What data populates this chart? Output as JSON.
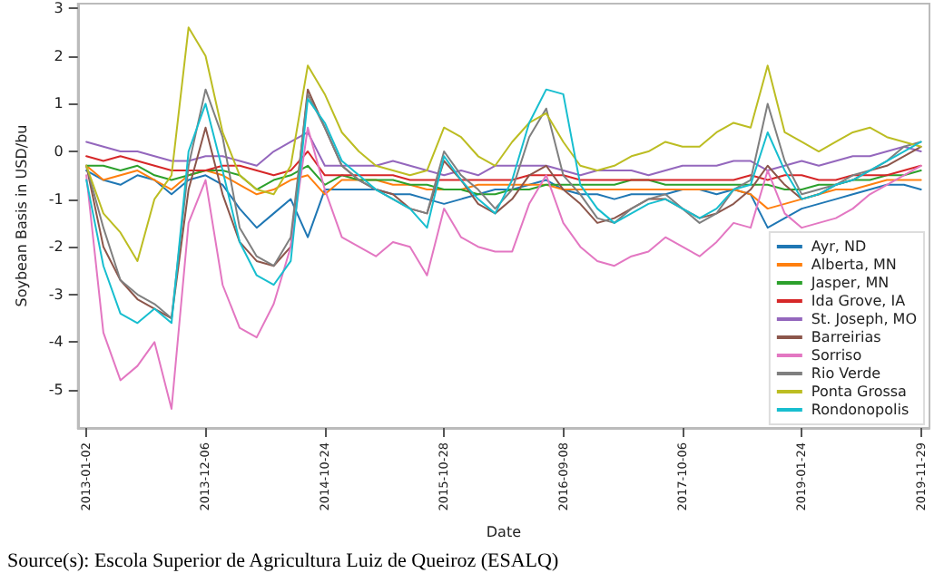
{
  "chart_data": {
    "type": "line",
    "xlabel": "Date",
    "ylabel": "Soybean Basis in USD/bu",
    "annotations": [
      "Source(s): Escola Superior de Agricultura Luiz de Queiroz (ESALQ)"
    ],
    "categories": [
      "2013-01-02",
      null,
      null,
      null,
      null,
      null,
      null,
      "2013-12-06",
      null,
      null,
      null,
      null,
      null,
      null,
      "2014-10-24",
      null,
      null,
      null,
      null,
      null,
      null,
      "2015-10-28",
      null,
      null,
      null,
      null,
      null,
      null,
      "2016-09-08",
      null,
      null,
      null,
      null,
      null,
      null,
      "2017-10-06",
      null,
      null,
      null,
      null,
      null,
      null,
      "2019-01-24",
      null,
      null,
      null,
      null,
      null,
      null,
      "2019-11-29"
    ],
    "ylim": [
      -5.8,
      3.1
    ],
    "yticks": [
      -5,
      -4,
      -3,
      -2,
      -1,
      0,
      1,
      2,
      3
    ],
    "legend": "bottom right",
    "grid": false,
    "line_style": "solid",
    "marker": "none",
    "series": [
      {
        "name": "Ayr, ND",
        "color": "#1f77b4",
        "values": [
          -0.4,
          -0.6,
          -0.7,
          -0.5,
          -0.6,
          -0.9,
          -0.6,
          -0.5,
          -0.7,
          -1.2,
          -1.6,
          -1.3,
          -1.0,
          -1.8,
          -0.8,
          -0.8,
          -0.8,
          -0.8,
          -0.9,
          -0.9,
          -1.0,
          -1.1,
          -1.0,
          -0.9,
          -0.8,
          -0.8,
          -0.7,
          -0.6,
          -0.8,
          -0.9,
          -0.9,
          -1.0,
          -0.9,
          -0.9,
          -0.9,
          -0.8,
          -0.8,
          -0.9,
          -0.8,
          -0.9,
          -1.6,
          -1.4,
          -1.2,
          -1.1,
          -1.0,
          -0.9,
          -0.8,
          -0.7,
          -0.7,
          -0.8
        ]
      },
      {
        "name": "Alberta, MN",
        "color": "#ff7f0e",
        "values": [
          -0.3,
          -0.6,
          -0.5,
          -0.4,
          -0.6,
          -0.8,
          -0.5,
          -0.4,
          -0.5,
          -0.7,
          -0.9,
          -0.8,
          -0.6,
          -0.5,
          -0.9,
          -0.6,
          -0.6,
          -0.6,
          -0.7,
          -0.7,
          -0.8,
          -0.8,
          -0.8,
          -0.7,
          -0.7,
          -0.7,
          -0.7,
          -0.7,
          -0.8,
          -0.8,
          -0.8,
          -0.8,
          -0.8,
          -0.8,
          -0.8,
          -0.8,
          -0.8,
          -0.8,
          -0.8,
          -0.9,
          -1.2,
          -1.1,
          -1.0,
          -0.9,
          -0.8,
          -0.8,
          -0.7,
          -0.6,
          -0.6,
          -0.6
        ]
      },
      {
        "name": "Jasper, MN",
        "color": "#2ca02c",
        "values": [
          -0.3,
          -0.3,
          -0.4,
          -0.3,
          -0.5,
          -0.6,
          -0.5,
          -0.4,
          -0.4,
          -0.5,
          -0.8,
          -0.6,
          -0.5,
          -0.3,
          -0.7,
          -0.5,
          -0.6,
          -0.6,
          -0.6,
          -0.7,
          -0.7,
          -0.8,
          -0.8,
          -0.9,
          -0.9,
          -0.8,
          -0.8,
          -0.7,
          -0.7,
          -0.7,
          -0.7,
          -0.7,
          -0.6,
          -0.6,
          -0.7,
          -0.7,
          -0.7,
          -0.7,
          -0.7,
          -0.7,
          -0.7,
          -0.8,
          -0.8,
          -0.7,
          -0.7,
          -0.6,
          -0.6,
          -0.5,
          -0.5,
          -0.4
        ]
      },
      {
        "name": "Ida Grove, IA",
        "color": "#d62728",
        "values": [
          -0.1,
          -0.2,
          -0.1,
          -0.2,
          -0.3,
          -0.4,
          -0.4,
          -0.4,
          -0.3,
          -0.3,
          -0.4,
          -0.5,
          -0.4,
          0.0,
          -0.5,
          -0.5,
          -0.5,
          -0.5,
          -0.5,
          -0.6,
          -0.6,
          -0.6,
          -0.6,
          -0.6,
          -0.6,
          -0.6,
          -0.5,
          -0.5,
          -0.5,
          -0.6,
          -0.6,
          -0.6,
          -0.6,
          -0.6,
          -0.6,
          -0.6,
          -0.6,
          -0.6,
          -0.6,
          -0.5,
          -0.6,
          -0.5,
          -0.5,
          -0.6,
          -0.6,
          -0.5,
          -0.5,
          -0.5,
          -0.4,
          -0.3
        ]
      },
      {
        "name": "St. Joseph, MO",
        "color": "#9467bd",
        "values": [
          0.2,
          0.1,
          0.0,
          0.0,
          -0.1,
          -0.2,
          -0.2,
          -0.1,
          -0.1,
          -0.2,
          -0.3,
          0.0,
          0.2,
          0.4,
          -0.3,
          -0.3,
          -0.3,
          -0.3,
          -0.2,
          -0.3,
          -0.4,
          -0.5,
          -0.4,
          -0.5,
          -0.3,
          -0.3,
          -0.3,
          -0.3,
          -0.4,
          -0.5,
          -0.4,
          -0.4,
          -0.4,
          -0.5,
          -0.4,
          -0.3,
          -0.3,
          -0.3,
          -0.2,
          -0.2,
          -0.4,
          -0.3,
          -0.2,
          -0.3,
          -0.2,
          -0.1,
          -0.1,
          0.0,
          0.1,
          0.0
        ]
      },
      {
        "name": "Barreirias",
        "color": "#8c564b",
        "values": [
          -0.3,
          -2.0,
          -2.7,
          -3.1,
          -3.3,
          -3.5,
          -0.8,
          0.5,
          -0.9,
          -1.9,
          -2.3,
          -2.4,
          -2.0,
          1.3,
          0.5,
          -0.3,
          -0.6,
          -0.8,
          -0.9,
          -1.2,
          -1.3,
          -0.2,
          -0.6,
          -1.1,
          -1.3,
          -1.0,
          -0.5,
          -0.3,
          -0.8,
          -1.1,
          -1.5,
          -1.4,
          -1.2,
          -1.0,
          -1.0,
          -1.2,
          -1.4,
          -1.3,
          -1.1,
          -0.8,
          -0.3,
          -0.7,
          -1.0,
          -0.9,
          -0.7,
          -0.6,
          -0.4,
          -0.3,
          -0.1,
          0.1
        ]
      },
      {
        "name": "Sorriso",
        "color": "#e377c2",
        "values": [
          -0.5,
          -3.8,
          -4.8,
          -4.5,
          -4.0,
          -5.4,
          -1.5,
          -0.6,
          -2.8,
          -3.7,
          -3.9,
          -3.2,
          -2.0,
          0.5,
          -0.8,
          -1.8,
          -2.0,
          -2.2,
          -1.9,
          -2.0,
          -2.6,
          -1.2,
          -1.8,
          -2.0,
          -2.1,
          -2.1,
          -1.1,
          -0.5,
          -1.5,
          -2.0,
          -2.3,
          -2.4,
          -2.2,
          -2.1,
          -1.8,
          -2.0,
          -2.2,
          -1.9,
          -1.5,
          -1.6,
          -0.4,
          -1.3,
          -1.6,
          -1.5,
          -1.4,
          -1.2,
          -0.9,
          -0.7,
          -0.5,
          -0.3
        ]
      },
      {
        "name": "Rio Verde",
        "color": "#7f7f7f",
        "values": [
          -0.3,
          -1.6,
          -2.7,
          -3.0,
          -3.2,
          -3.5,
          -0.3,
          1.3,
          0.3,
          -1.6,
          -2.2,
          -2.4,
          -1.8,
          1.2,
          0.5,
          -0.3,
          -0.6,
          -0.8,
          -1.0,
          -1.2,
          -1.3,
          0.0,
          -0.5,
          -0.8,
          -1.2,
          -0.8,
          0.3,
          0.9,
          -0.5,
          -0.9,
          -1.4,
          -1.5,
          -1.2,
          -1.0,
          -0.9,
          -1.2,
          -1.5,
          -1.3,
          -0.8,
          -0.6,
          1.0,
          -0.2,
          -0.9,
          -0.8,
          -0.7,
          -0.5,
          -0.4,
          -0.2,
          0.1,
          0.2
        ]
      },
      {
        "name": "Ponta Grossa",
        "color": "#bcbd22",
        "values": [
          -0.3,
          -1.3,
          -1.7,
          -2.3,
          -1.0,
          -0.5,
          2.6,
          2.0,
          0.4,
          -0.5,
          -0.8,
          -0.9,
          -0.3,
          1.8,
          1.2,
          0.4,
          0.0,
          -0.3,
          -0.4,
          -0.5,
          -0.4,
          0.5,
          0.3,
          -0.1,
          -0.3,
          0.2,
          0.6,
          0.8,
          0.2,
          -0.3,
          -0.4,
          -0.3,
          -0.1,
          0.0,
          0.2,
          0.1,
          0.1,
          0.4,
          0.6,
          0.5,
          1.8,
          0.4,
          0.2,
          0.0,
          0.2,
          0.4,
          0.5,
          0.3,
          0.2,
          0.1
        ]
      },
      {
        "name": "Rondonopolis",
        "color": "#17becf",
        "values": [
          -0.6,
          -2.4,
          -3.4,
          -3.6,
          -3.3,
          -3.6,
          0.0,
          1.0,
          -0.4,
          -1.9,
          -2.6,
          -2.8,
          -2.3,
          1.1,
          0.6,
          -0.2,
          -0.5,
          -0.8,
          -1.0,
          -1.2,
          -1.6,
          -0.1,
          -0.6,
          -1.0,
          -1.3,
          -0.6,
          0.6,
          1.3,
          1.2,
          -0.7,
          -1.2,
          -1.5,
          -1.3,
          -1.1,
          -1.0,
          -1.2,
          -1.4,
          -1.2,
          -0.8,
          -0.7,
          0.4,
          -0.4,
          -1.0,
          -0.9,
          -0.7,
          -0.6,
          -0.4,
          -0.2,
          0.0,
          0.2
        ]
      }
    ]
  }
}
